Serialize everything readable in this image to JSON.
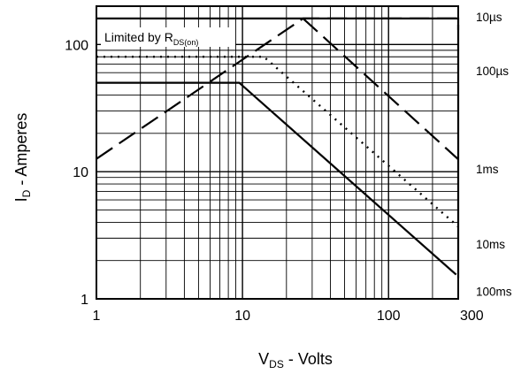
{
  "chart_data": {
    "type": "line",
    "title": "",
    "xlabel": {
      "main": "V",
      "sub": "DS",
      "rest": " - Volts"
    },
    "ylabel": {
      "main": "I",
      "sub": "D",
      "rest": " - Amperes"
    },
    "x_scale": "log",
    "y_scale": "log",
    "xlim": [
      1,
      300
    ],
    "ylim": [
      1,
      200
    ],
    "grid": true,
    "x_ticks": [
      {
        "value": 1,
        "label": "1"
      },
      {
        "value": 10,
        "label": "10"
      },
      {
        "value": 100,
        "label": "100"
      },
      {
        "value": 300,
        "label": "300"
      }
    ],
    "y_ticks": [
      {
        "value": 1,
        "label": "1"
      },
      {
        "value": 10,
        "label": "10"
      },
      {
        "value": 100,
        "label": "100"
      }
    ],
    "annotation": {
      "main": "Limited by R",
      "sub": "DS(on)"
    },
    "right_labels": [
      {
        "value": 165,
        "label": "10µs"
      },
      {
        "value": 62,
        "label": "100µs"
      },
      {
        "value": 10.5,
        "label": "1ms"
      },
      {
        "value": 2.7,
        "label": "10ms"
      },
      {
        "value": 1.15,
        "label": "100ms"
      }
    ],
    "series": [
      {
        "dash": "long-dash",
        "points": [
          [
            1,
            12.6
          ],
          [
            26,
            160
          ],
          [
            300,
            160
          ],
          [
            300,
            130
          ]
        ]
      },
      {
        "dash": "long-dash",
        "points": [
          [
            26,
            160
          ],
          [
            300,
            12.5
          ]
        ]
      },
      {
        "dash": "dotted",
        "points": [
          [
            1,
            80
          ],
          [
            14,
            80
          ],
          [
            300,
            3.7
          ]
        ]
      },
      {
        "dash": "solid",
        "points": [
          [
            1,
            50
          ],
          [
            9.5,
            50
          ],
          [
            290,
            1.55
          ]
        ]
      },
      {
        "dash": "solid",
        "points": [
          [
            1,
            160
          ],
          [
            300,
            160
          ],
          [
            300,
            1.45
          ]
        ]
      }
    ]
  }
}
